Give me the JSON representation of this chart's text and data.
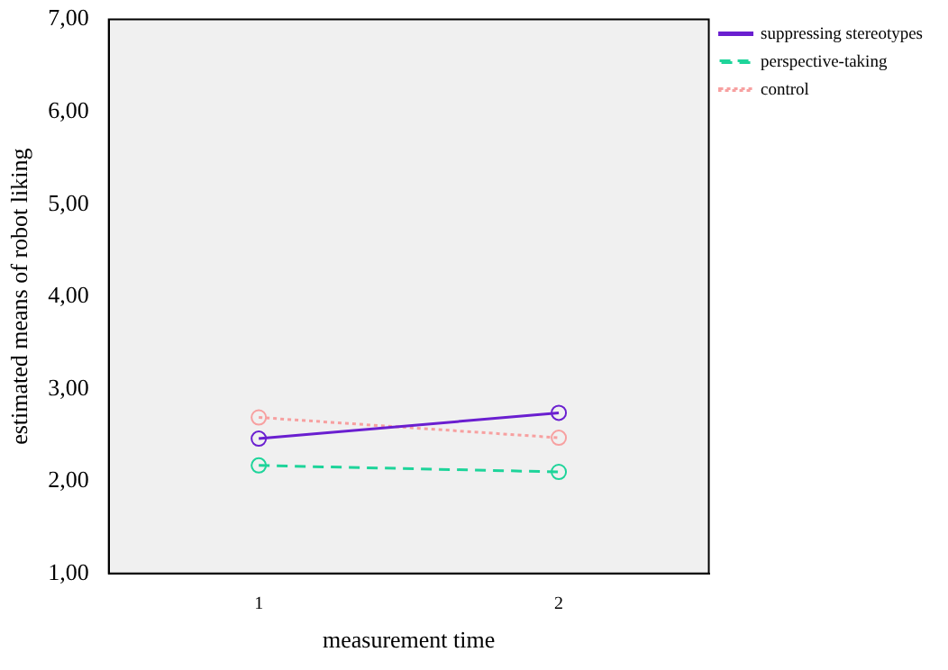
{
  "chart_data": {
    "type": "line",
    "xlabel": "measurement time",
    "ylabel": "estimated means of robot liking",
    "categories": [
      "1",
      "2"
    ],
    "series": [
      {
        "name": "suppressing stereotypes",
        "color": "#6a1fd0",
        "values": [
          2.46,
          2.74
        ],
        "line_style": "solid"
      },
      {
        "name": "perspective-taking",
        "color": "#1ed49a",
        "values": [
          2.17,
          2.1
        ],
        "line_style": "dashed"
      },
      {
        "name": "control",
        "color": "#f7a0a0",
        "values": [
          2.69,
          2.47
        ],
        "line_style": "dotted"
      }
    ],
    "ylim": [
      1,
      7
    ],
    "yticks": [
      {
        "value": 1,
        "label": "1,00"
      },
      {
        "value": 2,
        "label": "2,00"
      },
      {
        "value": 3,
        "label": "3,00"
      },
      {
        "value": 4,
        "label": "4,00"
      },
      {
        "value": 5,
        "label": "5,00"
      },
      {
        "value": 6,
        "label": "6,00"
      },
      {
        "value": 7,
        "label": "7,00"
      }
    ],
    "marker": "circle",
    "grid": false,
    "legend": "right"
  }
}
